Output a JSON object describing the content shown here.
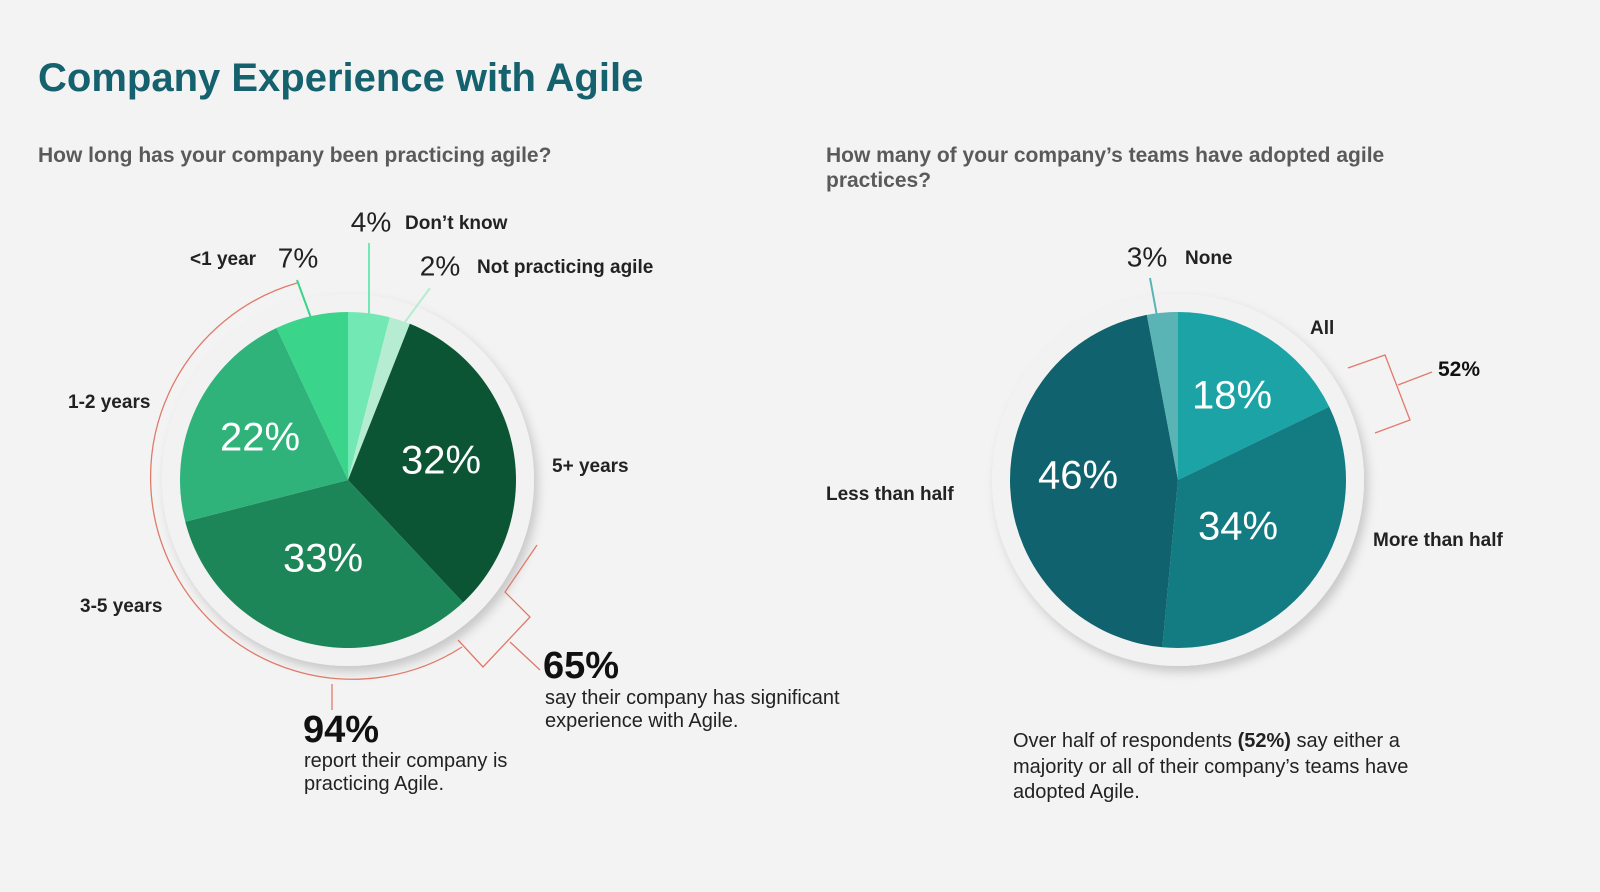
{
  "header": {
    "title": "Company Experience with Agile"
  },
  "chart_data": [
    {
      "type": "pie",
      "title": "How long has your company been practicing agile?",
      "categories": [
        "Don’t know",
        "Not practicing agile",
        "5+ years",
        "3-5 years",
        "1-2 years",
        "<1 year"
      ],
      "values": [
        4,
        2,
        32,
        33,
        22,
        7
      ],
      "value_labels": [
        "4%",
        "2%",
        "32%",
        "33%",
        "22%",
        "7%"
      ],
      "colors": [
        "#72e8b4",
        "#b6ecd2",
        "#0b5535",
        "#1d8658",
        "#2fb37a",
        "#3ad48a"
      ],
      "annotations": [
        {
          "value": 65,
          "label": "65%",
          "text": "say their company has significant experience with Agile."
        },
        {
          "value": 94,
          "label": "94%",
          "text": "report their company is practicing Agile."
        }
      ]
    },
    {
      "type": "pie",
      "title": "How many of your company’s teams have adopted agile practices?",
      "categories": [
        "All",
        "More than half",
        "Less than half",
        "None"
      ],
      "values": [
        18,
        34,
        46,
        3
      ],
      "value_labels": [
        "18%",
        "34%",
        "46%",
        "3%"
      ],
      "colors": [
        "#1ba3a6",
        "#137b82",
        "#10636e",
        "#5ab3b5"
      ],
      "annotations": [
        {
          "value": 52,
          "label": "52%"
        }
      ],
      "note": {
        "prefix": "Over half of respondents ",
        "highlight": "(52%)",
        "suffix": "say either a majority or all of their company’s teams have adopted Agile."
      }
    }
  ]
}
